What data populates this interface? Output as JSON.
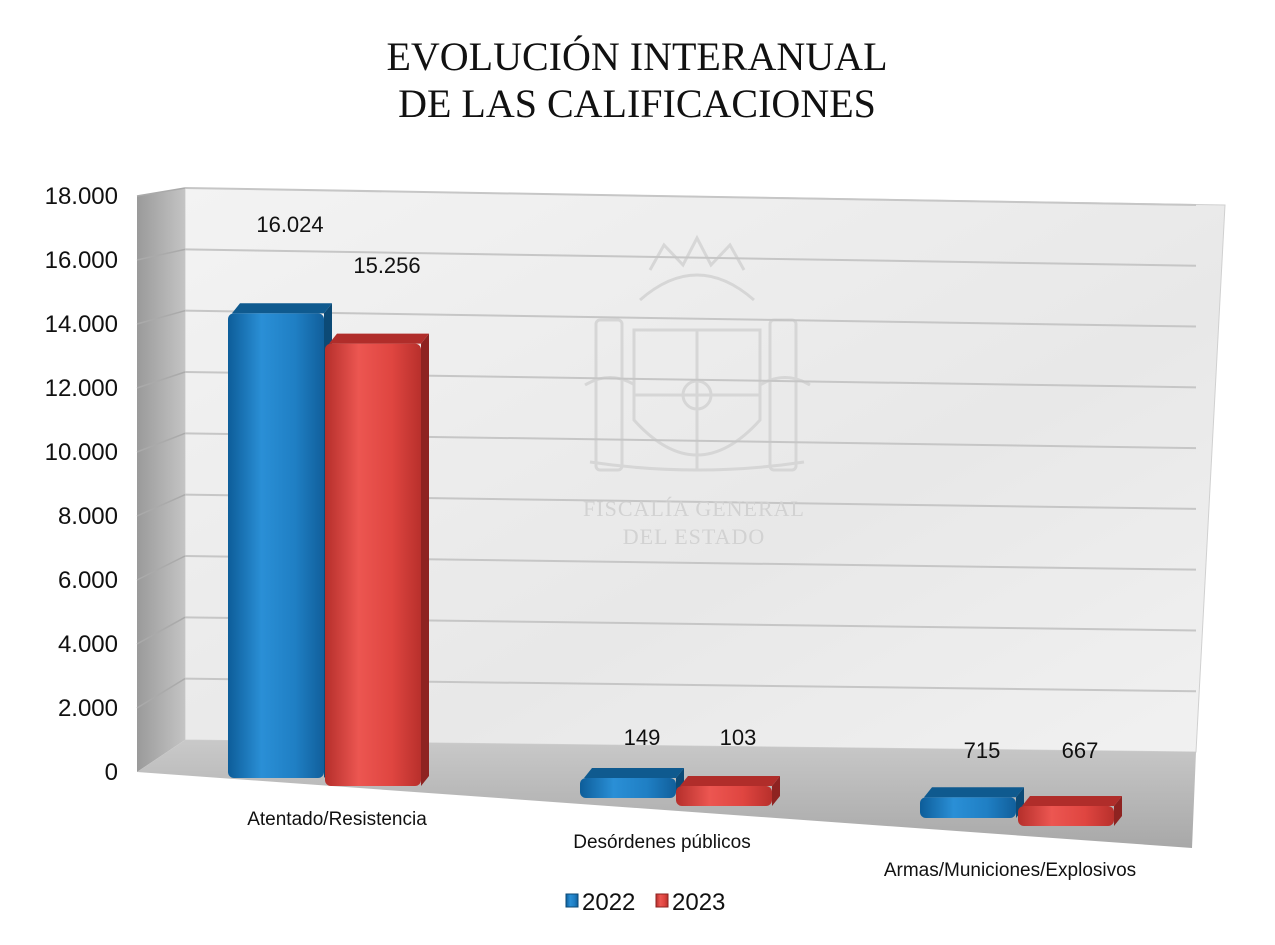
{
  "chart_data": {
    "type": "bar",
    "title_lines": [
      "EVOLUCIÓN INTERANUAL",
      "DE LAS CALIFICACIONES"
    ],
    "categories": [
      "Atentado/Resistencia",
      "Desórdenes públicos",
      "Armas/Municiones/Explosivos"
    ],
    "series": [
      {
        "name": "2022",
        "values": [
          16024,
          149,
          715
        ],
        "labels": [
          "16.024",
          "149",
          "715"
        ],
        "color": "#1f7fc4",
        "top_color": "#0f5a8f",
        "side_color": "#0c4a76"
      },
      {
        "name": "2023",
        "values": [
          15256,
          103,
          667
        ],
        "labels": [
          "15.256",
          "103",
          "667"
        ],
        "color": "#df4540",
        "top_color": "#b02d2a",
        "side_color": "#8e2321"
      }
    ],
    "y_ticks": [
      {
        "value": 0,
        "label": "0"
      },
      {
        "value": 2000,
        "label": "2.000"
      },
      {
        "value": 4000,
        "label": "4.000"
      },
      {
        "value": 6000,
        "label": "6.000"
      },
      {
        "value": 8000,
        "label": "8.000"
      },
      {
        "value": 10000,
        "label": "10.000"
      },
      {
        "value": 12000,
        "label": "12.000"
      },
      {
        "value": 14000,
        "label": "14.000"
      },
      {
        "value": 16000,
        "label": "16.000"
      },
      {
        "value": 18000,
        "label": "18.000"
      }
    ],
    "ylim": [
      0,
      18000
    ],
    "grid": true,
    "legend_position": "bottom",
    "watermark_lines": [
      "FISCALÍA GENERAL",
      "DEL ESTADO"
    ]
  }
}
